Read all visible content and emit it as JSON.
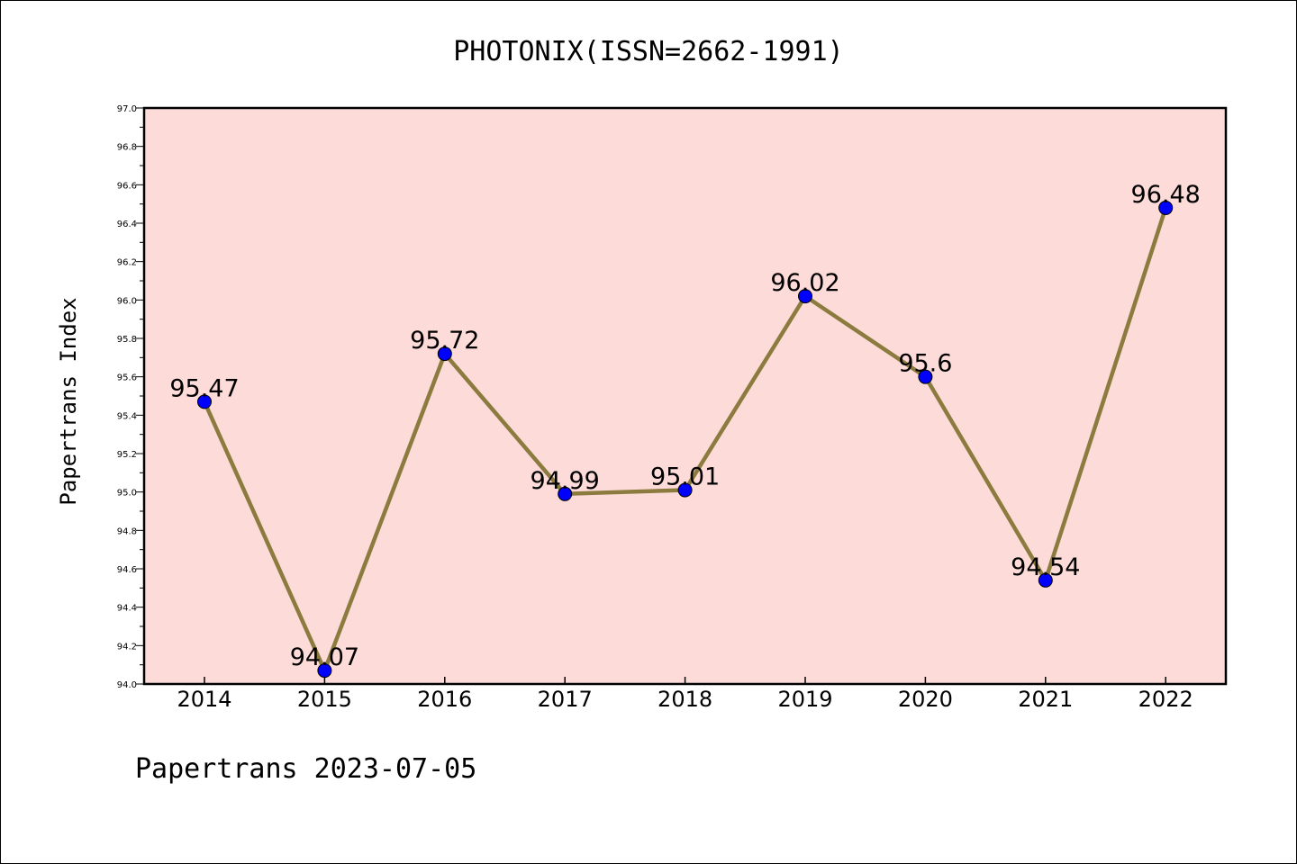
{
  "chart_data": {
    "type": "line",
    "title": "PHOTONIX(ISSN=2662-1991)",
    "ylabel": "Papertrans Index",
    "xlabel": "",
    "categories": [
      "2014",
      "2015",
      "2016",
      "2017",
      "2018",
      "2019",
      "2020",
      "2021",
      "2022"
    ],
    "series": [
      {
        "values": [
          95.47,
          94.07,
          95.72,
          94.99,
          95.01,
          96.02,
          95.6,
          94.54,
          96.48
        ],
        "labels": [
          "95.47",
          "94.07",
          "95.72",
          "94.99",
          "95.01",
          "96.02",
          "95.6",
          "94.54",
          "96.48"
        ]
      }
    ],
    "ylim": [
      94.0,
      97.0
    ],
    "yticks": [
      "94.0",
      "94.2",
      "94.4",
      "94.6",
      "94.8",
      "95.0",
      "95.2",
      "95.4",
      "95.6",
      "95.8",
      "96.0",
      "96.2",
      "96.4",
      "96.6",
      "96.8",
      "97.0"
    ],
    "grid": false,
    "colors": {
      "plot_background": "#fddbd9",
      "line": "#8b7b3e",
      "marker": "#0000ff"
    }
  },
  "footer": "Papertrans 2023-07-05"
}
